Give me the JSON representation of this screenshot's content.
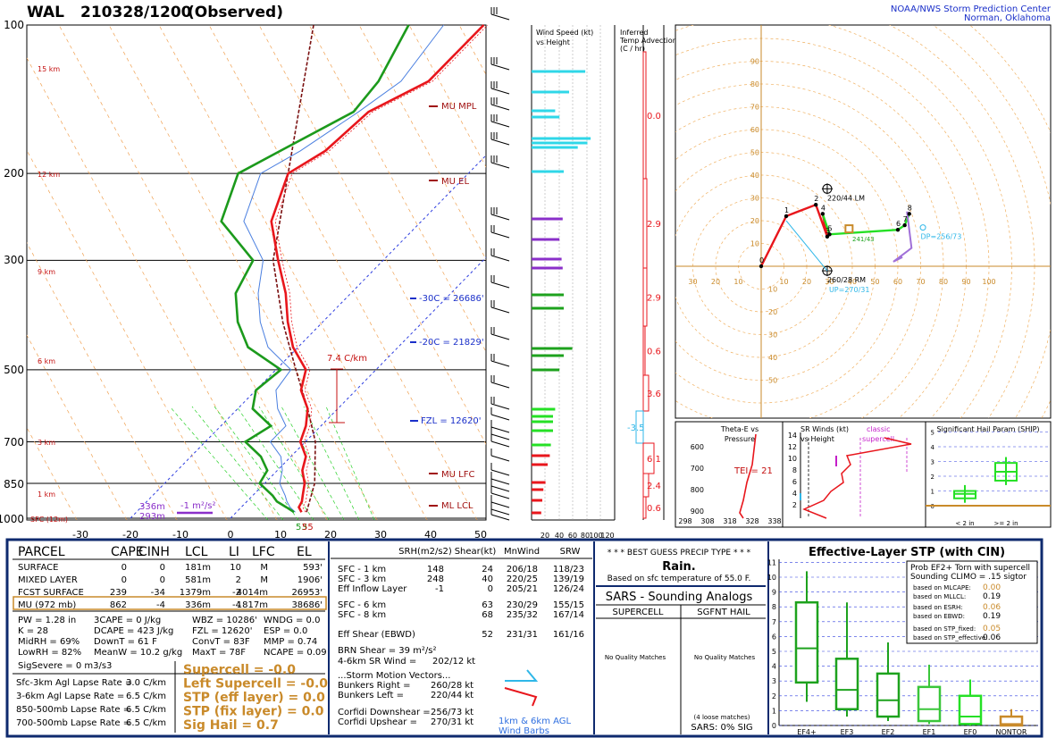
{
  "header": {
    "station": "WAL",
    "time": "210328/1200",
    "status": "(Observed)",
    "org_line1": "NOAA/NWS Storm Prediction Center",
    "org_line2": "Norman, Oklahoma"
  },
  "colors": {
    "temp": "#e8161c",
    "dew": "#1c9a1c",
    "wetbulb": "#4a7fe0",
    "parcel": "#7a1010",
    "cyan": "#2fd7e8",
    "purple": "#8a2fc9",
    "green": "#1da21d",
    "lime": "#25e025",
    "red": "#e8161c",
    "orange": "#c98a2a",
    "navy": "#0e2a6e",
    "blue_link": "#1a2fc9"
  },
  "skewt": {
    "pressure_labels": [
      "100",
      "200",
      "300",
      "500",
      "700",
      "850",
      "1000"
    ],
    "temp_labels": [
      "-30",
      "-20",
      "-10",
      "0",
      "10",
      "20",
      "30",
      "40",
      "50"
    ],
    "height_labels": [
      "15 km",
      "12 km",
      "9 km",
      "6 km",
      "3 km",
      "1 km",
      "SFC (12m)"
    ],
    "annotations": {
      "mu_mpl": "MU MPL",
      "mu_el": "MU EL",
      "m30": "-30C = 26686'",
      "m20": "-20C = 21829'",
      "fzl": "FZL = 12620'",
      "mu_lfc": "MU LFC",
      "ml_lcl": "ML LCL",
      "lapse": "7.4 C/km",
      "h336": "336m",
      "h293": "293m",
      "ms": "-1 m²/s²",
      "sfc_t": "55",
      "sfc_td": "53"
    }
  },
  "wind_profile": {
    "title1": "Wind Speed (kt)",
    "title2": "vs Height",
    "axis": [
      "20",
      "40",
      "60",
      "80",
      "100",
      "120"
    ]
  },
  "temp_adv": {
    "title1": "Inferred",
    "title2": "Temp Advection",
    "title3": "(C / hr)",
    "values": [
      "0.0",
      "2.9",
      "2.9",
      "0.6",
      "3.6",
      "-3.5",
      "6.1",
      "2.4",
      "0.6"
    ]
  },
  "hodograph": {
    "ring_labels": [
      "10",
      "20",
      "30",
      "40",
      "50",
      "60",
      "70",
      "80",
      "90"
    ],
    "left_labels": [
      "10",
      "20",
      "30"
    ],
    "right_labels": [
      "10",
      "20",
      "30",
      "40",
      "50",
      "60",
      "70",
      "80",
      "90",
      "100"
    ],
    "lm": "220/44 LM",
    "rm": "260/28 RM",
    "dp": "DP=256/73",
    "up": "UP=270/31",
    "mean": "241/43",
    "pts": [
      "0",
      "1",
      "2",
      "3",
      "4",
      "5",
      "6",
      "7",
      "8"
    ]
  },
  "theta": {
    "title1": "Theta-E vs",
    "title2": "Pressure",
    "tei": "TEI = 21",
    "ylabels": [
      "600",
      "700",
      "800",
      "900"
    ],
    "xlabels": [
      "298",
      "308",
      "318",
      "328",
      "338"
    ]
  },
  "srwind": {
    "title1": "SR Winds (kt)",
    "title2": "vs Height",
    "classic1": "classic",
    "classic2": "supercell",
    "ylabels": [
      "14",
      "12",
      "10",
      "8",
      "6",
      "4",
      "2"
    ]
  },
  "ship": {
    "title": "Significant Hail Param (SHIP)",
    "ylabels": [
      "5",
      "4",
      "3",
      "2",
      "1",
      "0"
    ],
    "xlabels": [
      "< 2 in",
      ">= 2 in"
    ]
  },
  "parcel_table": {
    "headers": [
      "PARCEL",
      "CAPE",
      "CINH",
      "LCL",
      "LI",
      "LFC",
      "EL"
    ],
    "rows": [
      [
        "SURFACE",
        "0",
        "0",
        "181m",
        "10",
        "M",
        "593'"
      ],
      [
        "MIXED LAYER",
        "0",
        "0",
        "581m",
        "2",
        "M",
        "1906'"
      ],
      [
        "FCST SURFACE",
        "239",
        "-34",
        "1379m",
        "-2",
        "4014m",
        "26953'"
      ],
      [
        "MU   (972 mb)",
        "862",
        "-4",
        "336m",
        "-4",
        "1817m",
        "38686'"
      ]
    ],
    "indices": [
      [
        "PW = 1.28 in",
        "3CAPE = 0 J/kg",
        "WBZ = 10286'",
        "WNDG = 0.0"
      ],
      [
        "K = 28",
        "DCAPE = 423 J/kg",
        "FZL = 12620'",
        "ESP = 0.0"
      ],
      [
        "MidRH = 69%",
        "DownT = 61 F",
        "ConvT = 83F",
        "MMP = 0.74"
      ],
      [
        "LowRH = 82%",
        "MeanW = 10.2 g/kg",
        "MaxT = 78F",
        "NCAPE = 0.09"
      ]
    ],
    "sigsevere": "SigSevere = 0 m3/s3",
    "lapse": [
      [
        "Sfc-3km Agl Lapse Rate =",
        "3.0 C/km"
      ],
      [
        "3-6km Agl Lapse Rate =",
        "6.5 C/km"
      ],
      [
        "850-500mb Lapse Rate =",
        "6.5 C/km"
      ],
      [
        "700-500mb Lapse Rate =",
        "6.5 C/km"
      ]
    ],
    "composite": [
      "Supercell = -0.0",
      "Left Supercell = -0.0",
      "STP (eff layer) = 0.0",
      "STP (fix layer) = 0.0",
      "Sig Hail = 0.7"
    ]
  },
  "kinematics": {
    "headers": [
      "SRH(m2/s2)",
      "Shear(kt)",
      "MnWind",
      "SRW"
    ],
    "rows": [
      [
        "SFC - 1 km",
        "148",
        "24",
        "206/18",
        "118/23"
      ],
      [
        "SFC - 3 km",
        "248",
        "40",
        "220/25",
        "139/19"
      ],
      [
        "Eff Inflow Layer",
        "-1",
        "0",
        "205/21",
        "126/24"
      ],
      [
        "SFC - 6 km",
        "",
        "63",
        "230/29",
        "155/15"
      ],
      [
        "SFC - 8 km",
        "",
        "68",
        "235/32",
        "167/14"
      ],
      [
        "Eff Shear (EBWD)",
        "",
        "52",
        "231/31",
        "161/16"
      ]
    ],
    "brn": "BRN Shear = 39 m²/s²",
    "srw46": "4-6km SR Wind =",
    "srw46_val": "202/12 kt",
    "storm_title": "...Storm Motion Vectors...",
    "motions": [
      [
        "Bunkers Right =",
        "260/28 kt"
      ],
      [
        "Bunkers Left =",
        "220/44 kt"
      ],
      [
        "Corfidi Downshear =",
        "256/73 kt"
      ],
      [
        "Corfidi Upshear =",
        "270/31 kt"
      ]
    ],
    "barbs1": "1km & 6km AGL",
    "barbs2": "Wind Barbs"
  },
  "precip": {
    "title": "* * * BEST GUESS PRECIP TYPE * * *",
    "type": "Rain.",
    "note": "Based on sfc temperature of 55.0 F."
  },
  "sars": {
    "title": "SARS - Sounding Analogs",
    "col1": "SUPERCELL",
    "col2": "SGFNT HAIL",
    "nq1": "No Quality Matches",
    "nq2": "No Quality Matches",
    "loose": "(4 loose matches)",
    "sig": "SARS:  0% SIG"
  },
  "stp": {
    "title": "Effective-Layer STP (with CIN)",
    "prob1": "Prob EF2+ Torn with supercell",
    "prob2": "Sounding CLIMO = .15 sigtor",
    "probs": [
      [
        "based on MLCAPE:",
        "0.00"
      ],
      [
        "based on MLLCL:",
        "0.19"
      ],
      [
        "based on ESRH:",
        "0.06"
      ],
      [
        "based on EBWD:",
        "0.19"
      ],
      [
        "based on STP_fixed:",
        "0.05"
      ],
      [
        "based on STP_effective:",
        "0.06"
      ]
    ],
    "ylabels": [
      "11",
      "10",
      "9",
      "8",
      "7",
      "6",
      "5",
      "4",
      "3",
      "2",
      "1",
      "0"
    ],
    "categories": [
      "EF4+",
      "EF3",
      "EF2",
      "EF1",
      "EF0",
      "NONTOR"
    ]
  },
  "chart_data": [
    {
      "type": "line",
      "title": "Skew-T",
      "pressure_levels_mb": [
        1000,
        850,
        700,
        500,
        300,
        200,
        100
      ],
      "temperature_profile": [
        [
          972,
          13
        ],
        [
          950,
          11.5
        ],
        [
          925,
          11
        ],
        [
          900,
          10
        ],
        [
          850,
          8
        ],
        [
          800,
          5
        ],
        [
          750,
          3
        ],
        [
          700,
          -1
        ],
        [
          650,
          -3
        ],
        [
          600,
          -6
        ],
        [
          550,
          -11
        ],
        [
          500,
          -14
        ],
        [
          450,
          -21
        ],
        [
          400,
          -27
        ],
        [
          350,
          -33
        ],
        [
          300,
          -41
        ],
        [
          250,
          -50
        ],
        [
          200,
          -56
        ],
        [
          180,
          -53
        ],
        [
          150,
          -52
        ],
        [
          130,
          -46
        ],
        [
          100,
          -46
        ]
      ],
      "dewpoint_profile": [
        [
          972,
          11.5
        ],
        [
          950,
          9
        ],
        [
          925,
          6
        ],
        [
          900,
          4
        ],
        [
          850,
          -1
        ],
        [
          800,
          -2
        ],
        [
          750,
          -6
        ],
        [
          700,
          -12
        ],
        [
          650,
          -10
        ],
        [
          600,
          -17
        ],
        [
          550,
          -20
        ],
        [
          500,
          -19
        ],
        [
          450,
          -30
        ],
        [
          400,
          -37
        ],
        [
          350,
          -43
        ],
        [
          300,
          -46
        ],
        [
          250,
          -60
        ],
        [
          200,
          -66
        ],
        [
          180,
          -62
        ],
        [
          150,
          -55
        ],
        [
          130,
          -56
        ],
        [
          100,
          -61
        ]
      ],
      "ylim": [
        1000,
        100
      ],
      "xlim": [
        -30,
        50
      ]
    },
    {
      "type": "bar",
      "title": "Wind Speed (kt) vs Height",
      "values_kt": [
        50,
        35,
        22,
        26,
        55,
        52,
        43,
        30,
        29,
        26,
        28,
        29,
        30,
        30,
        38,
        30,
        26,
        22,
        20,
        20,
        20,
        18,
        17,
        15,
        13,
        11,
        10,
        9
      ],
      "xlim": [
        0,
        120
      ]
    },
    {
      "type": "line",
      "title": "Hodograph",
      "u_kt": [
        0,
        11,
        24,
        29,
        27,
        30,
        60,
        63,
        65
      ],
      "v_kt": [
        0,
        22,
        27,
        13,
        23,
        14,
        16,
        18,
        23
      ],
      "xlim": [
        -30,
        100
      ],
      "ylim": [
        -50,
        90
      ]
    },
    {
      "type": "bar",
      "title": "Effective-Layer STP (with CIN)",
      "categories": [
        "EF4+",
        "EF3",
        "EF2",
        "EF1",
        "EF0",
        "NONTOR"
      ],
      "series": [
        {
          "name": "p10",
          "values": [
            1.6,
            0.6,
            0.3,
            0.1,
            0,
            0
          ]
        },
        {
          "name": "p25",
          "values": [
            2.9,
            1.1,
            0.6,
            0.3,
            0.1,
            0
          ]
        },
        {
          "name": "median",
          "values": [
            5.2,
            2.4,
            1.7,
            1.1,
            0.6,
            0.1
          ]
        },
        {
          "name": "p75",
          "values": [
            8.3,
            4.5,
            3.5,
            2.6,
            2.0,
            0.6
          ]
        },
        {
          "name": "p90",
          "values": [
            10.4,
            8.3,
            5.6,
            4.1,
            3.1,
            1.1
          ]
        }
      ],
      "ylim": [
        0,
        11
      ]
    },
    {
      "type": "bar",
      "title": "Significant Hail Param (SHIP)",
      "categories": [
        "< 2 in",
        ">= 2 in"
      ],
      "series": [
        {
          "name": "p25",
          "values": [
            0.5,
            1.7
          ]
        },
        {
          "name": "median",
          "values": [
            0.8,
            2.3
          ]
        },
        {
          "name": "p75",
          "values": [
            1.0,
            2.9
          ]
        }
      ],
      "ylim": [
        0,
        5.5
      ]
    }
  ]
}
